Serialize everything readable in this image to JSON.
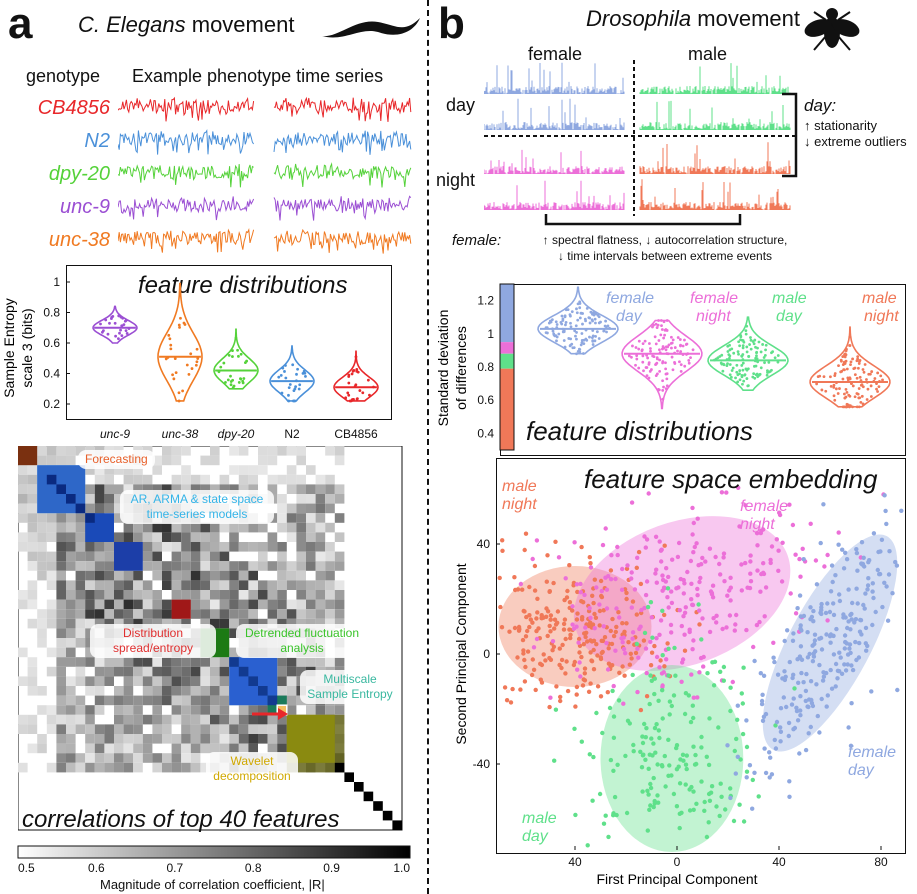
{
  "panel_a": {
    "letter": "a",
    "title_italic": "C. Elegans",
    "title_rest": " movement",
    "worm_icon": "worm-silhouette-icon",
    "header_genotype": "genotype",
    "header_series": "Example phenotype time series",
    "genotypes": [
      {
        "label": "CB4856",
        "color": "#e8272a"
      },
      {
        "label": "N2",
        "color": "#4a90d9"
      },
      {
        "label": "dpy-20",
        "color": "#55d23a"
      },
      {
        "label": "unc-9",
        "color": "#9b4fd3"
      },
      {
        "label": "unc-38",
        "color": "#f07a22"
      }
    ],
    "violin": {
      "title": "feature distributions",
      "ylabel_line1": "Sample Entropy",
      "ylabel_line2": "scale 3 (bits)",
      "yticks": [
        "1",
        "0.8",
        "0.6",
        "0.4",
        "0.2"
      ],
      "categories": [
        {
          "label": "unc-9",
          "italic": true,
          "color": "#9b4fd3",
          "median": 0.7,
          "min": 0.6,
          "max": 0.84
        },
        {
          "label": "unc-38",
          "italic": true,
          "color": "#f07a22",
          "median": 0.51,
          "min": 0.22,
          "max": 0.99
        },
        {
          "label": "dpy-20",
          "italic": true,
          "color": "#55d23a",
          "median": 0.42,
          "min": 0.3,
          "max": 0.69
        },
        {
          "label": "N2",
          "italic": false,
          "color": "#4a90d9",
          "median": 0.35,
          "min": 0.22,
          "max": 0.58
        },
        {
          "label": "CB4856",
          "italic": false,
          "color": "#e8272a",
          "median": 0.31,
          "min": 0.22,
          "max": 0.55
        }
      ]
    },
    "heatmap": {
      "title": "correlations of top 40 features",
      "colorbar_ticks": [
        "0.5",
        "0.6",
        "0.7",
        "0.8",
        "0.9",
        "1.0"
      ],
      "colorbar_label": "Magnitude of correlation coefficient, |R|",
      "groups": [
        {
          "label": "Forecasting",
          "color": "#e8602a"
        },
        {
          "label": "AR, ARMA & state space time-series models",
          "color": "#34b4e8"
        },
        {
          "label": "Distribution spread/entropy",
          "color": "#e03030"
        },
        {
          "label": "Detrended fluctuation analysis",
          "color": "#3ac42a"
        },
        {
          "label": "Multiscale Sample Entropy",
          "color": "#3ab8a0"
        },
        {
          "label": "Wavelet decomposition",
          "color": "#e0c020"
        }
      ]
    }
  },
  "panel_b": {
    "letter": "b",
    "title_italic": "Drosophila",
    "title_rest": " movement",
    "fly_icon": "fly-silhouette-icon",
    "col_female": "female",
    "col_male": "male",
    "row_day": "day",
    "row_night": "night",
    "day_note_title": "day:",
    "day_note_line1": "↑ stationarity",
    "day_note_line2": "↓ extreme outliers",
    "female_note_title": "female:",
    "female_note_line1": "↑ spectral flatness, ↓ autocorrelation structure,",
    "female_note_line2": "↓ time intervals between extreme events",
    "colors": {
      "female_day": "#8fa8e0",
      "female_night": "#ec6fd8",
      "male_day": "#5fe08a",
      "male_night": "#f07858"
    },
    "violin": {
      "title": "feature distributions",
      "ylabel_line1": "Standard deviation",
      "ylabel_line2": "of differences",
      "yticks": [
        "1.2",
        "1",
        "0.8",
        "0.6",
        "0.4"
      ],
      "categories": [
        {
          "line1": "female",
          "line2": "day",
          "color": "#8fa8e0",
          "median": 1.03,
          "min": 0.88,
          "max": 1.28
        },
        {
          "line1": "female",
          "line2": "night",
          "color": "#ec6fd8",
          "median": 0.88,
          "min": 0.55,
          "max": 1.08
        },
        {
          "line1": "male",
          "line2": "day",
          "color": "#5fe08a",
          "median": 0.84,
          "min": 0.66,
          "max": 1.1
        },
        {
          "line1": "male",
          "line2": "night",
          "color": "#f07858",
          "median": 0.71,
          "min": 0.56,
          "max": 1.04
        }
      ]
    },
    "scatter": {
      "title": "feature space embedding",
      "xlabel": "First Principal Component",
      "ylabel": "Second Principal Component",
      "xticks": [
        "40",
        "0",
        "40",
        "80"
      ],
      "yticks": [
        "40",
        "0",
        "-40"
      ],
      "labels": [
        {
          "line1": "male",
          "line2": "night",
          "color": "#f07858"
        },
        {
          "line1": "female",
          "line2": "night",
          "color": "#ec6fd8"
        },
        {
          "line1": "female",
          "line2": "day",
          "color": "#8fa8e0"
        },
        {
          "line1": "male",
          "line2": "day",
          "color": "#5fe08a"
        }
      ]
    }
  }
}
